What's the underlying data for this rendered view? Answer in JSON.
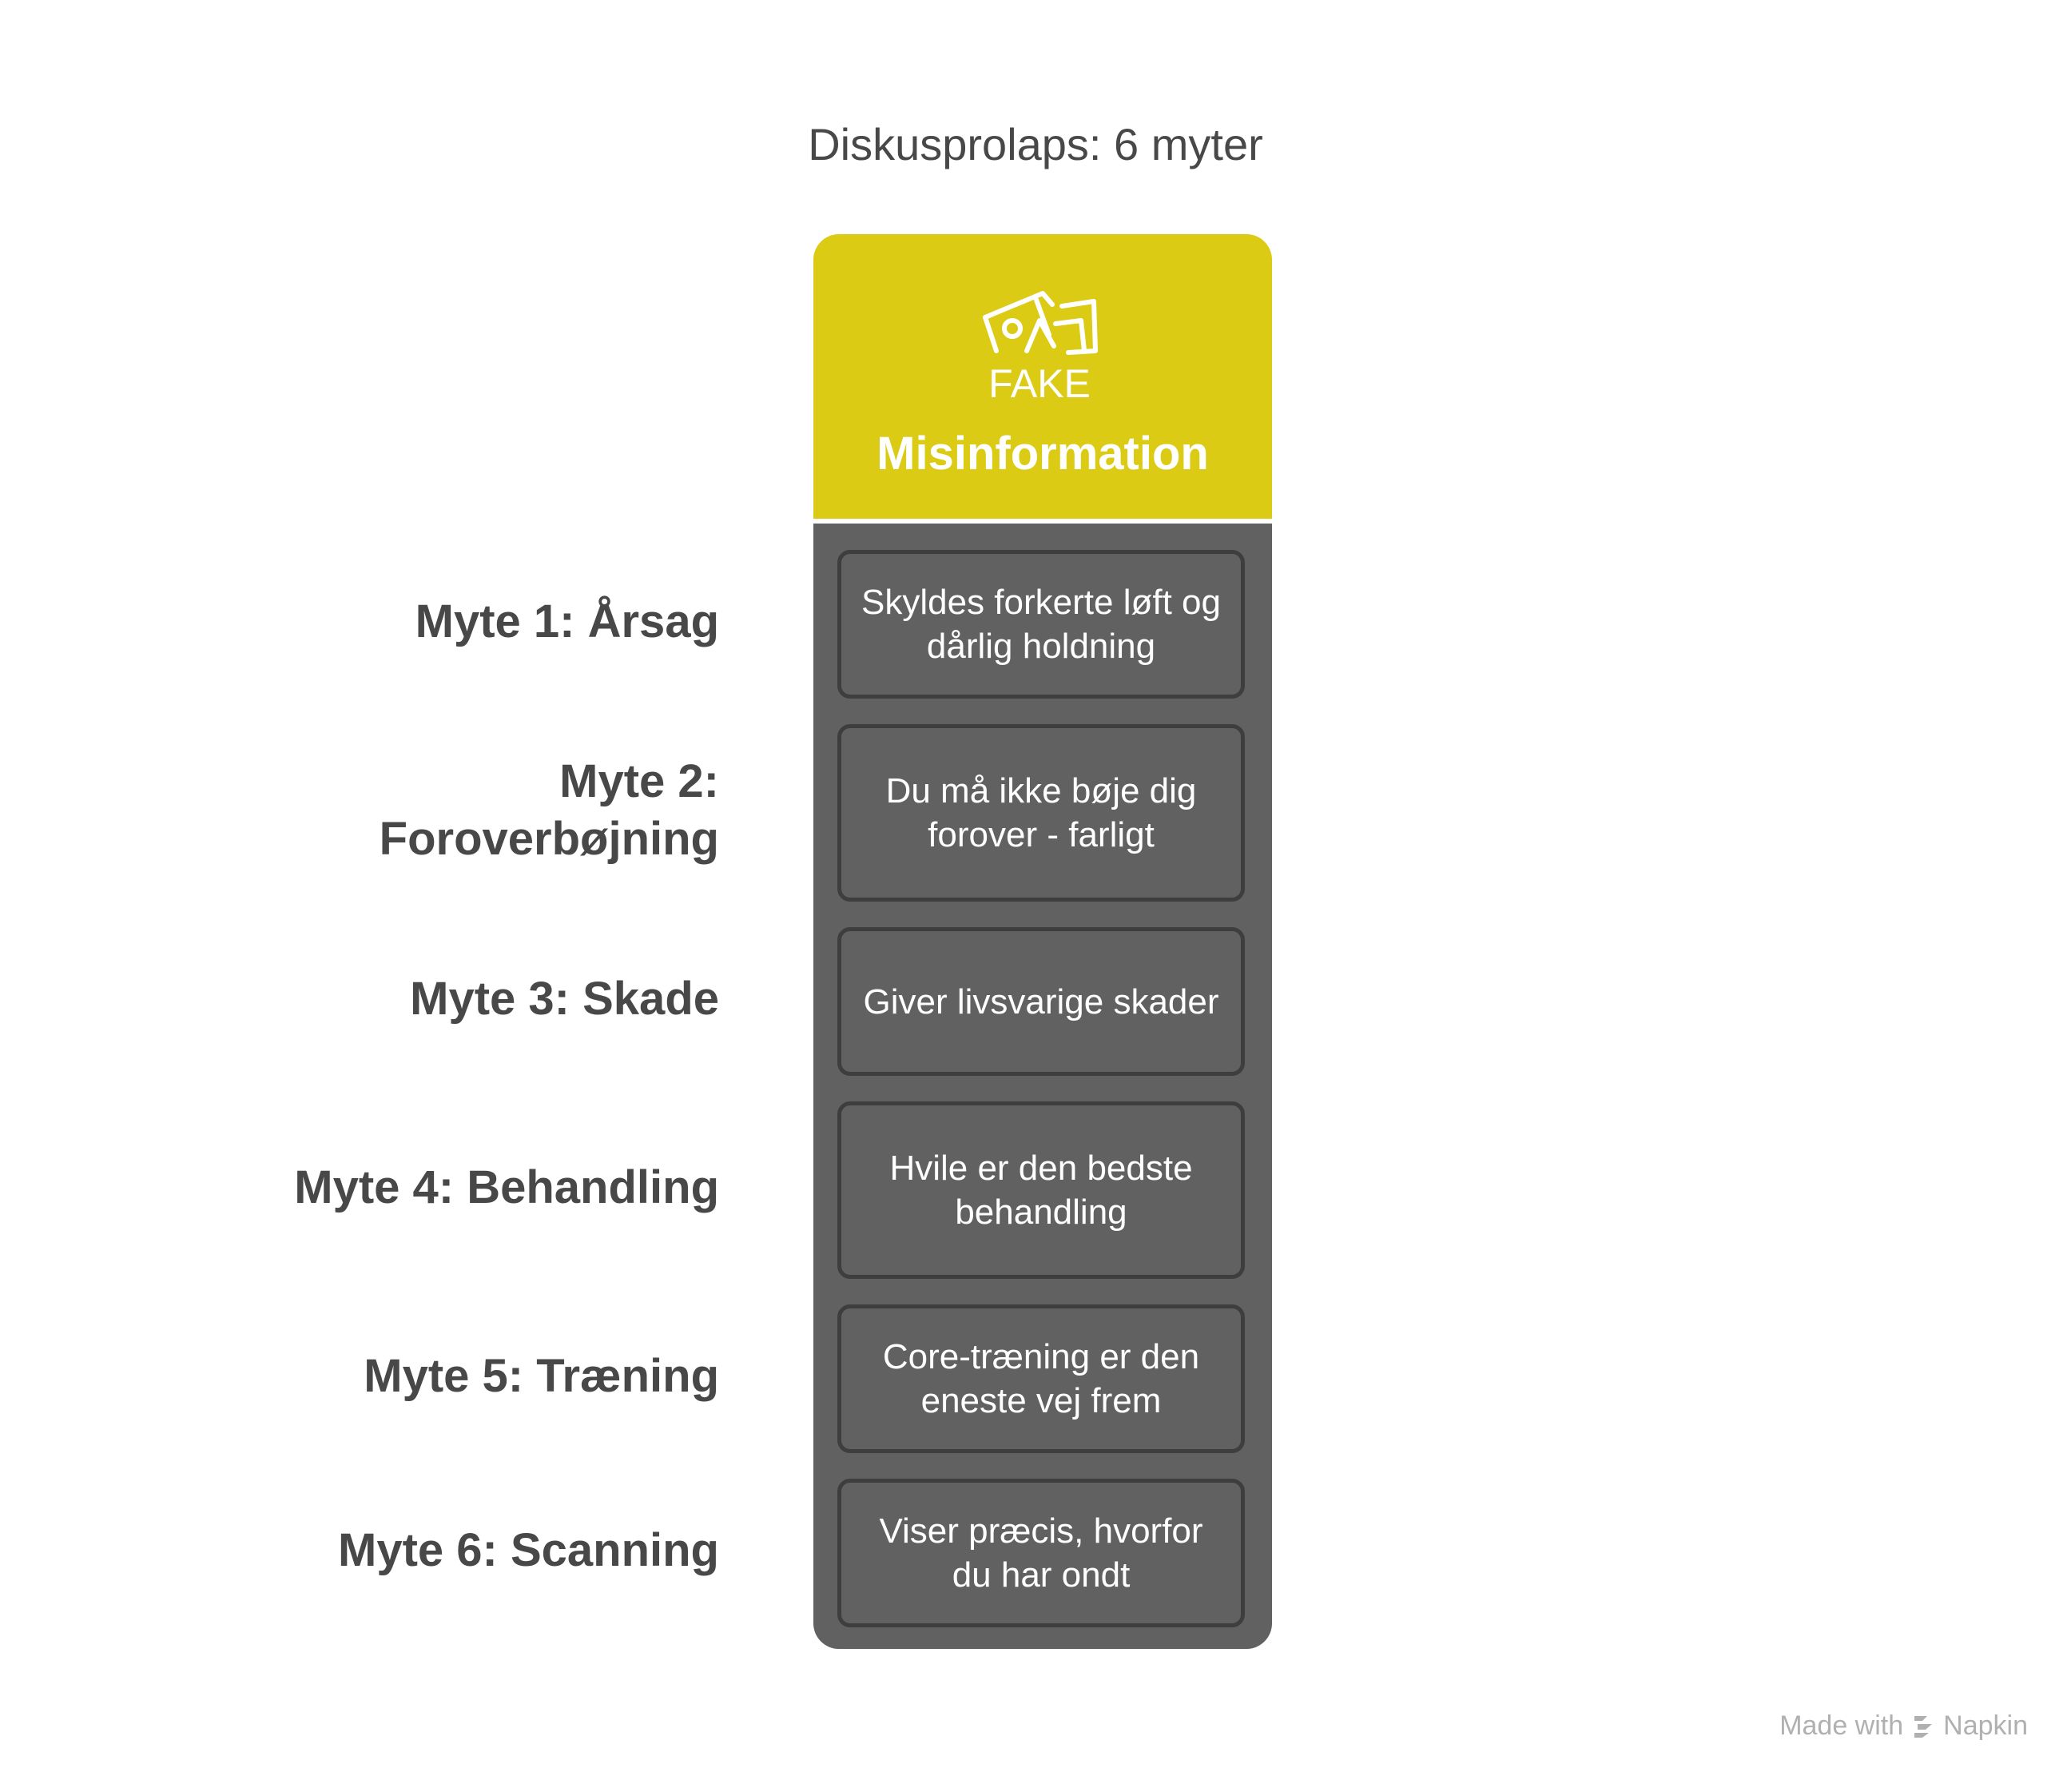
{
  "title": "Diskusprolaps: 6 myter",
  "header": {
    "icon": "fake-news-icon",
    "icon_text": "FAKE",
    "label": "Misinformation",
    "color": "#dccb15"
  },
  "panel_color": "#616161",
  "myths": [
    {
      "label": "Myte 1: Årsag",
      "text": "Skyldes forkerte løft og dårlig holdning"
    },
    {
      "label": "Myte 2: Foroverbøjning",
      "text": "Du må ikke bøje dig forover - farligt"
    },
    {
      "label": "Myte 3: Skade",
      "text": "Giver livsvarige skader"
    },
    {
      "label": "Myte 4: Behandling",
      "text": "Hvile er den bedste behandling"
    },
    {
      "label": "Myte 5: Træning",
      "text": "Core-træning er den eneste vej frem"
    },
    {
      "label": "Myte 6: Scanning",
      "text": "Viser præcis, hvorfor du har ondt"
    }
  ],
  "credit": {
    "prefix": "Made with",
    "brand": "Napkin"
  }
}
